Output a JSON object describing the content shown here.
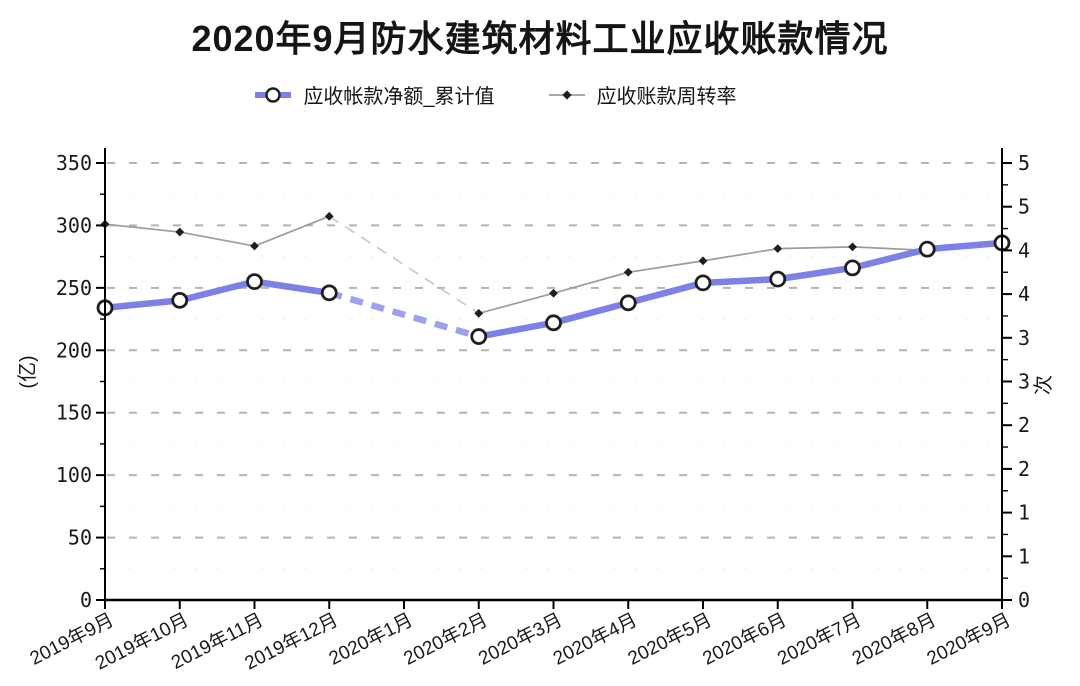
{
  "title": "2020年9月防水建筑材料工业应收账款情况",
  "legend": [
    {
      "label": "应收帐款净额_累计值",
      "marker": "blue-thick-line-open-circle"
    },
    {
      "label": "应收账款周转率",
      "marker": "gray-thin-line-diamond"
    }
  ],
  "colors": {
    "net_line": "#7d80e6",
    "net_line_dashed": "#9da1ec",
    "turnover_line": "#9c9c9c",
    "turnover_line_dashed": "#c9c9c9",
    "marker_stroke": "#1f1f1f",
    "grid_major": "#b3b3b3",
    "grid_minor": "#ececec",
    "axis": "#000000"
  },
  "chart_data": {
    "type": "line",
    "title": "2020年9月防水建筑材料工业应收账款情况",
    "categories": [
      "2019年9月",
      "2019年10月",
      "2019年11月",
      "2019年12月",
      "2020年1月",
      "2020年2月",
      "2020年3月",
      "2020年4月",
      "2020年5月",
      "2020年6月",
      "2020年7月",
      "2020年8月",
      "2020年9月"
    ],
    "series": [
      {
        "name": "应收帐款净额_累计值",
        "axis": "left",
        "values": [
          234,
          240,
          255,
          246,
          null,
          211,
          222,
          238,
          254,
          257,
          266,
          281,
          286
        ],
        "color": "#7d80e6",
        "dashed_color": "#9da1ec",
        "marker": "open-circle",
        "line_width": 6.5,
        "missing_data_style": "dashed-bridge"
      },
      {
        "name": "应收账款周转率",
        "axis": "right",
        "values": [
          4.3,
          4.21,
          4.05,
          4.39,
          null,
          3.28,
          3.51,
          3.75,
          3.88,
          4.02,
          4.04,
          4.0,
          4.12
        ],
        "color": "#9c9c9c",
        "dashed_color": "#c9c9c9",
        "marker": "diamond",
        "line_width": 1.7,
        "missing_data_style": "dashed-bridge"
      }
    ],
    "left_axis": {
      "title": "(亿)",
      "min": 0,
      "max": 350,
      "major_ticks": [
        0,
        50,
        100,
        150,
        200,
        250,
        300,
        350
      ],
      "tick_labels": [
        "0",
        "50",
        "100",
        "150",
        "200",
        "250",
        "300",
        "350"
      ],
      "minor_step": 25
    },
    "right_axis": {
      "title": "次",
      "min": 0,
      "max": 5,
      "major_ticks": [
        0,
        0.5,
        1,
        1.5,
        2,
        2.5,
        3,
        3.5,
        4,
        4.5,
        5
      ],
      "tick_labels": [
        "0",
        "1",
        "1",
        "2",
        "2",
        "3",
        "3",
        "4",
        "4",
        "5",
        "5"
      ],
      "minor_step": 0.25
    },
    "grid": "horizontal dashed lines at left-axis majors, faint dotted at minors",
    "legend_position": "top-center",
    "x_label_rotation_deg": -27
  }
}
